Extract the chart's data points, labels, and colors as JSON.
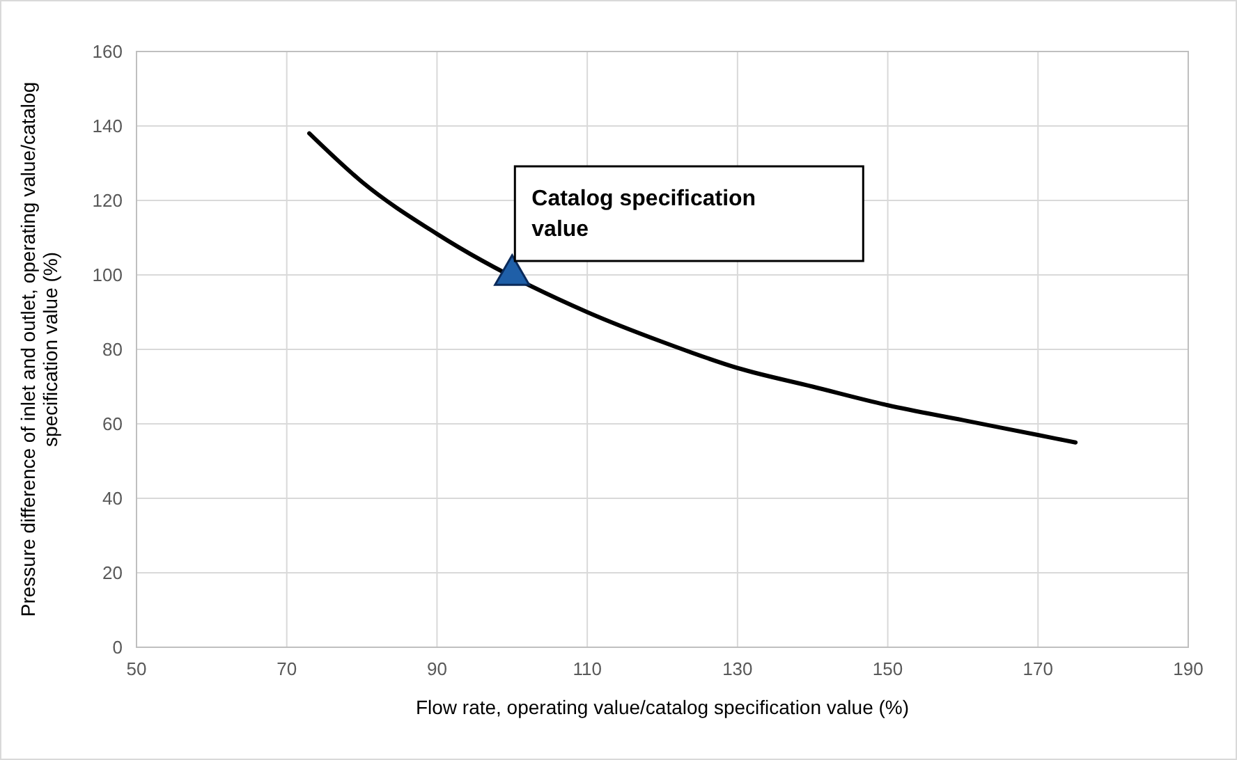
{
  "chart_data": {
    "type": "line",
    "xlabel": "Flow rate, operating value/catalog specification value (%)",
    "ylabel": "Pressure difference of inlet and outlet, operating value/catalog specification value (%)",
    "xlim": [
      50,
      190
    ],
    "xticks": [
      50,
      70,
      90,
      110,
      130,
      150,
      170,
      190
    ],
    "ylim": [
      0,
      160
    ],
    "yticks": [
      0,
      20,
      40,
      60,
      80,
      100,
      120,
      140,
      160
    ],
    "grid": true,
    "series": [
      {
        "color": "#000000",
        "marker": "none",
        "x": [
          73,
          80,
          90,
          110,
          120,
          130,
          140,
          150,
          160,
          170,
          175
        ],
        "values": [
          138,
          125,
          111,
          90,
          82,
          75,
          70,
          65,
          61,
          57,
          55
        ]
      },
      {
        "type": "scatter",
        "color": "#1f5fa8",
        "marker": "triangle",
        "x": [
          100
        ],
        "values": [
          100
        ]
      }
    ],
    "annotations": [
      {
        "text": "Catalog specification value",
        "x": 100,
        "y": 100
      }
    ]
  }
}
